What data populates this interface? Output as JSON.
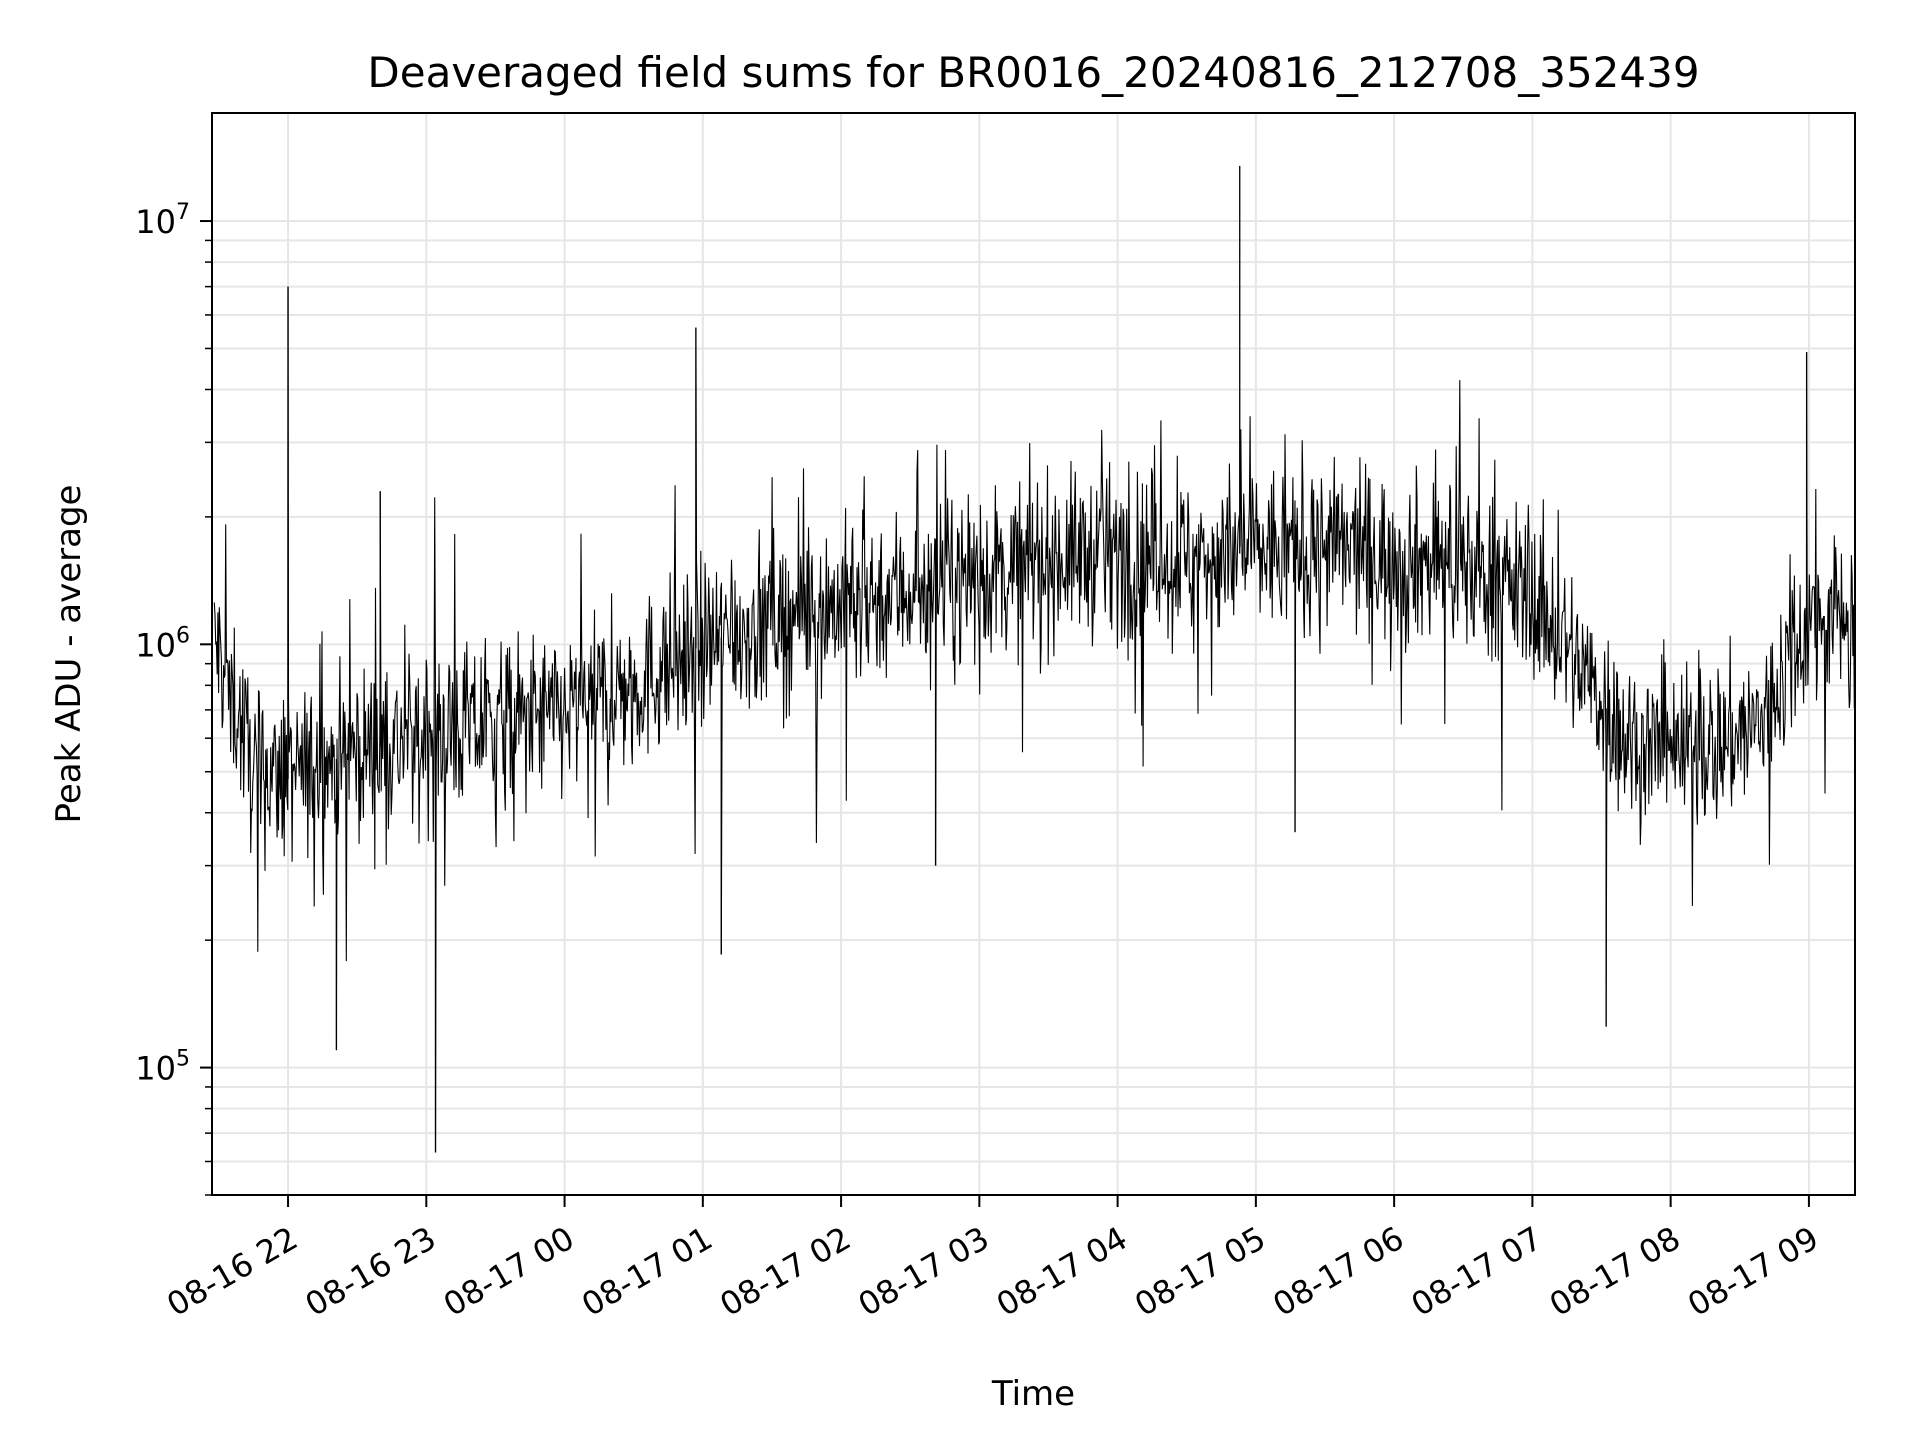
{
  "chart_data": {
    "type": "line",
    "title": "Deaveraged field sums for BR0016_20240816_212708_352439",
    "xlabel": "Time",
    "ylabel": "Peak ADU - average",
    "yscale": "log",
    "ylim": [
      50000,
      18000000
    ],
    "xlim": [
      "2024-08-16T21:27",
      "2024-08-17T09:20"
    ],
    "grid": true,
    "x_tick_labels": [
      "08-16 22",
      "08-16 23",
      "08-17 00",
      "08-17 01",
      "08-17 02",
      "08-17 03",
      "08-17 04",
      "08-17 05",
      "08-17 06",
      "08-17 07",
      "08-17 08",
      "08-17 09"
    ],
    "y_tick_labels": [
      {
        "value": 100000,
        "base": "10",
        "exp": "5"
      },
      {
        "value": 1000000,
        "base": "10",
        "exp": "6"
      },
      {
        "value": 10000000,
        "base": "10",
        "exp": "7"
      }
    ],
    "line_color": "#000000",
    "series": [
      {
        "time": [
          "2024-08-16T21:28",
          "2024-08-16T21:35",
          "2024-08-16T21:45",
          "2024-08-16T22:00",
          "2024-08-16T22:15",
          "2024-08-16T22:30",
          "2024-08-16T23:00",
          "2024-08-16T23:30",
          "2024-08-17T00:00",
          "2024-08-17T00:30",
          "2024-08-17T01:00",
          "2024-08-17T01:30",
          "2024-08-17T02:00",
          "2024-08-17T02:30",
          "2024-08-17T03:00",
          "2024-08-17T03:30",
          "2024-08-17T04:00",
          "2024-08-17T04:30",
          "2024-08-17T05:00",
          "2024-08-17T05:30",
          "2024-08-17T06:00",
          "2024-08-17T06:30",
          "2024-08-17T07:00",
          "2024-08-17T07:20",
          "2024-08-17T07:40",
          "2024-08-17T08:00",
          "2024-08-17T08:20",
          "2024-08-17T08:40",
          "2024-08-17T08:55",
          "2024-08-17T09:05",
          "2024-08-17T09:20"
        ],
        "values": [
          1000000,
          800000,
          500000,
          480000,
          520000,
          560000,
          600000,
          650000,
          680000,
          800000,
          1000000,
          1150000,
          1250000,
          1350000,
          1450000,
          1600000,
          1650000,
          1600000,
          1650000,
          1700000,
          1600000,
          1550000,
          1300000,
          900000,
          600000,
          550000,
          580000,
          650000,
          1050000,
          1150000,
          1200000
        ]
      }
    ],
    "spikes": [
      {
        "time": "2024-08-16T22:00",
        "value": 7000000
      },
      {
        "time": "2024-08-17T00:57",
        "value": 5600000
      },
      {
        "time": "2024-08-17T04:53",
        "value": 13500000
      },
      {
        "time": "2024-08-17T08:59",
        "value": 4900000
      },
      {
        "time": "2024-08-16T22:21",
        "value": 110000
      },
      {
        "time": "2024-08-16T23:04",
        "value": 63000
      },
      {
        "time": "2024-08-17T01:08",
        "value": 185000
      },
      {
        "time": "2024-08-17T02:41",
        "value": 300000
      },
      {
        "time": "2024-08-17T05:17",
        "value": 360000
      },
      {
        "time": "2024-08-17T07:32",
        "value": 125000
      },
      {
        "time": "2024-08-16T22:40",
        "value": 2300000
      }
    ]
  }
}
